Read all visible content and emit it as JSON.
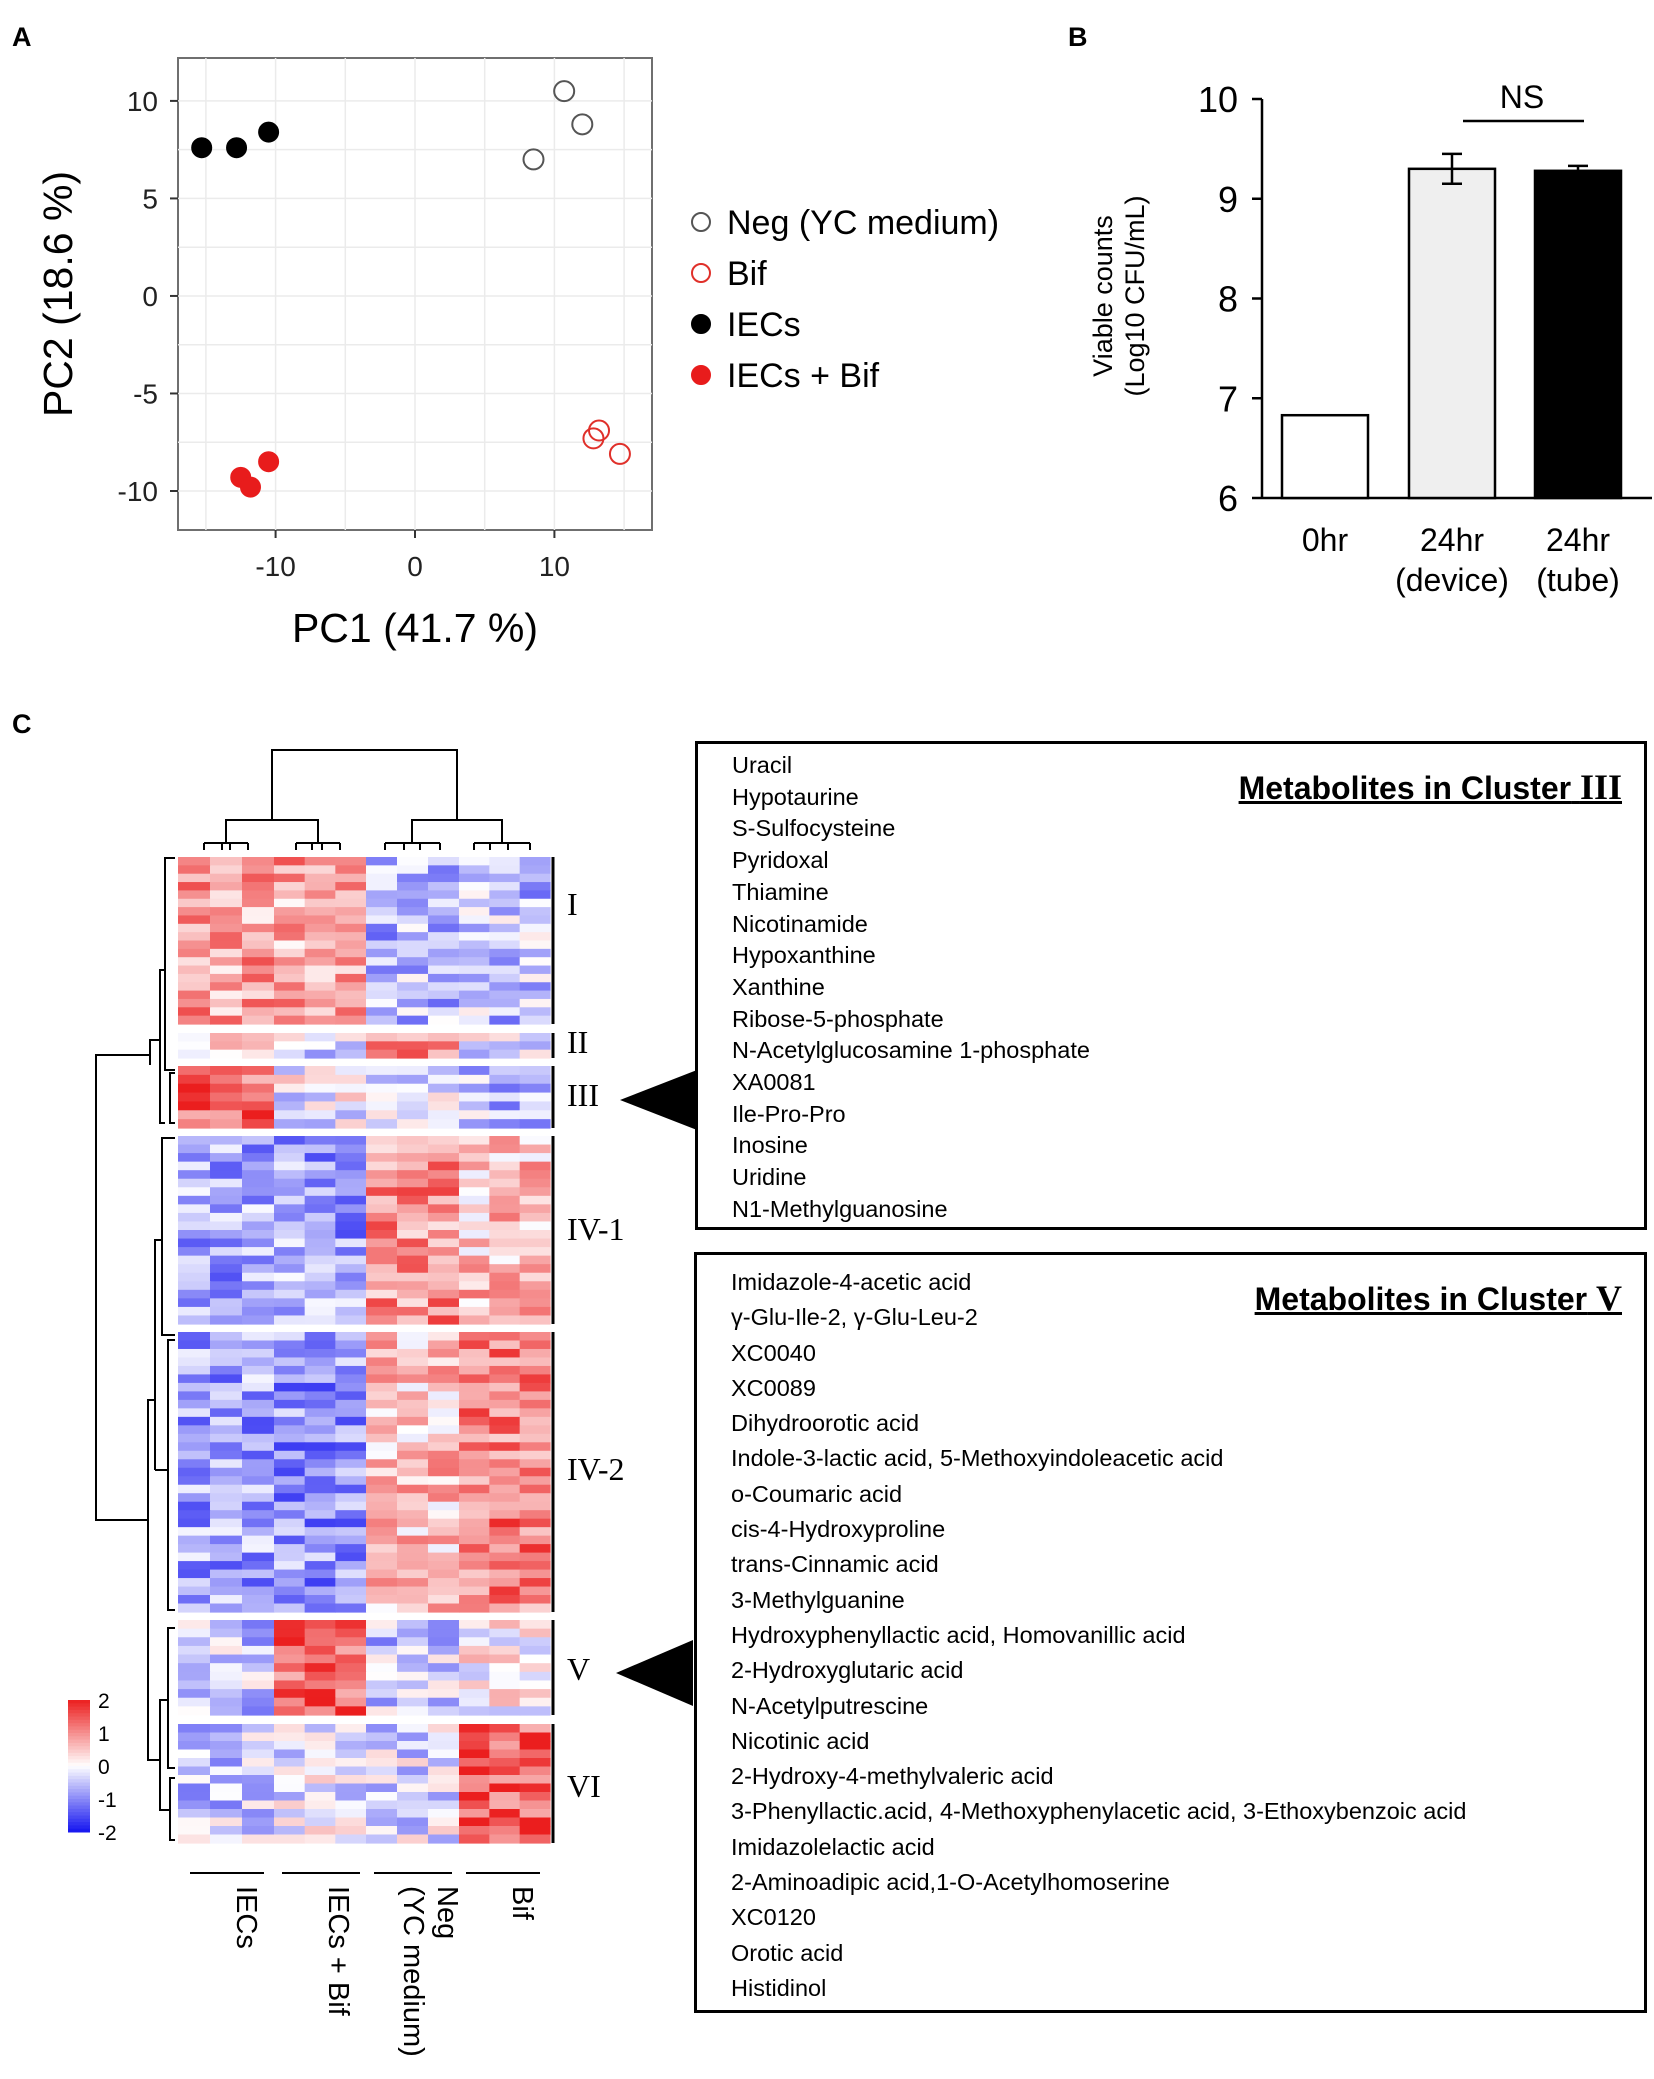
{
  "panel_labels": [
    "A",
    "B",
    "C"
  ],
  "chart_data": [
    {
      "type": "scatter",
      "panel": "A",
      "xlabel": "PC1 (41.7 %)",
      "ylabel": "PC2 (18.6 %)",
      "xlim": [
        -17,
        17
      ],
      "ylim": [
        -12,
        12.2
      ],
      "xticks": [
        -10,
        0,
        10
      ],
      "xtick_labels": [
        "-10",
        "0",
        "10"
      ],
      "yticks": [
        10,
        5,
        0,
        -5,
        -10
      ],
      "ytick_labels": [
        "10",
        "5",
        "0",
        "-5",
        "-10"
      ],
      "grid": true,
      "legend_placement": "right",
      "series": [
        {
          "name": "Neg (YC medium)",
          "color": "#555555",
          "filled": false,
          "points": [
            [
              8.5,
              7.0
            ],
            [
              10.7,
              10.5
            ],
            [
              12.0,
              8.8
            ]
          ]
        },
        {
          "name": "Bif",
          "color": "#e0302a",
          "filled": false,
          "points": [
            [
              12.8,
              -7.3
            ],
            [
              13.2,
              -6.9
            ],
            [
              14.7,
              -8.1
            ]
          ]
        },
        {
          "name": "IECs",
          "color": "#000000",
          "filled": true,
          "points": [
            [
              -15.3,
              7.6
            ],
            [
              -12.8,
              7.6
            ],
            [
              -10.5,
              8.4
            ]
          ]
        },
        {
          "name": "IECs + Bif",
          "color": "#e81c1c",
          "filled": true,
          "points": [
            [
              -12.5,
              -9.3
            ],
            [
              -11.8,
              -9.8
            ],
            [
              -10.5,
              -8.5
            ]
          ]
        }
      ]
    },
    {
      "type": "bar",
      "panel": "B",
      "ylabel_lines": [
        "Viable counts",
        "(Log10 CFU/mL)"
      ],
      "ylim": [
        6,
        10
      ],
      "yticks": [
        6,
        7,
        8,
        9,
        10
      ],
      "ytick_labels": [
        "6",
        "7",
        "8",
        "9",
        "10"
      ],
      "categories": [
        [
          "0hr"
        ],
        [
          "24hr",
          "(device)"
        ],
        [
          "24hr",
          "(tube)"
        ]
      ],
      "values": [
        6.83,
        9.3,
        9.28
      ],
      "errors": [
        0,
        0.15,
        0.05
      ],
      "colors": [
        "#ffffff",
        "#efefef",
        "#000000"
      ],
      "annotation": "NS"
    },
    {
      "type": "heatmap",
      "panel": "C",
      "columns": [
        "IECs",
        "IECs + Bif",
        "Neg (YC medium)",
        "Bif"
      ],
      "column_label_lines": [
        [
          "IECs"
        ],
        [
          "IECs + Bif"
        ],
        [
          "Neg",
          "(YC medium)"
        ],
        [
          "Bif"
        ]
      ],
      "colorbar_ticks": [
        "2",
        "1",
        "0",
        "-1",
        "-2"
      ],
      "clusters": [
        {
          "label": "I",
          "level": [
            0.85,
            0.8,
            -0.6,
            -0.55
          ]
        },
        {
          "label": "II",
          "level": [
            0.25,
            -0.3,
            1.0,
            -0.15
          ]
        },
        {
          "label": "III",
          "level": [
            1.3,
            -0.1,
            -0.35,
            -0.55
          ]
        },
        {
          "label": "IV-1",
          "level": [
            -0.75,
            -0.8,
            1.0,
            0.55
          ]
        },
        {
          "label": "IV-2",
          "level": [
            -0.8,
            -0.9,
            0.55,
            1.15
          ]
        },
        {
          "label": "V",
          "level": [
            -0.45,
            1.35,
            -0.45,
            0.1
          ]
        },
        {
          "label": "VI",
          "level": [
            -0.45,
            -0.1,
            -0.25,
            1.45
          ]
        }
      ]
    }
  ],
  "cluster_boxes": {
    "cluster3": {
      "title": "Metabolites in Cluster",
      "roman": "III",
      "items": [
        "Uracil",
        "Hypotaurine",
        "S-Sulfocysteine",
        "Pyridoxal",
        "Thiamine",
        "Nicotinamide",
        "Hypoxanthine",
        "Xanthine",
        "Ribose-5-phosphate",
        "N-Acetylglucosamine 1-phosphate",
        "XA0081",
        "Ile-Pro-Pro",
        "Inosine",
        "Uridine",
        "N1-Methylguanosine"
      ]
    },
    "cluster5": {
      "title": "Metabolites in Cluster",
      "roman": "V",
      "items": [
        "Imidazole-4-acetic acid",
        "γ-Glu-Ile-2, γ-Glu-Leu-2",
        "XC0040",
        "XC0089",
        "Dihydroorotic acid",
        "Indole-3-lactic acid, 5-Methoxyindoleacetic acid",
        "o-Coumaric acid",
        "cis-4-Hydroxyproline",
        "trans-Cinnamic acid",
        "3-Methylguanine",
        "Hydroxyphenyllactic acid, Homovanillic acid",
        "2-Hydroxyglutaric acid",
        "N-Acetylputrescine",
        "Nicotinic acid",
        "2-Hydroxy-4-methylvaleric acid",
        "3-Phenyllactic.acid, 4-Methoxyphenylacetic acid, 3-Ethoxybenzoic acid",
        "Imidazolelactic acid",
        "2-Aminoadipic acid,1-O-Acetylhomoserine",
        "XC0120",
        "Orotic acid",
        "Histidinol"
      ]
    }
  }
}
